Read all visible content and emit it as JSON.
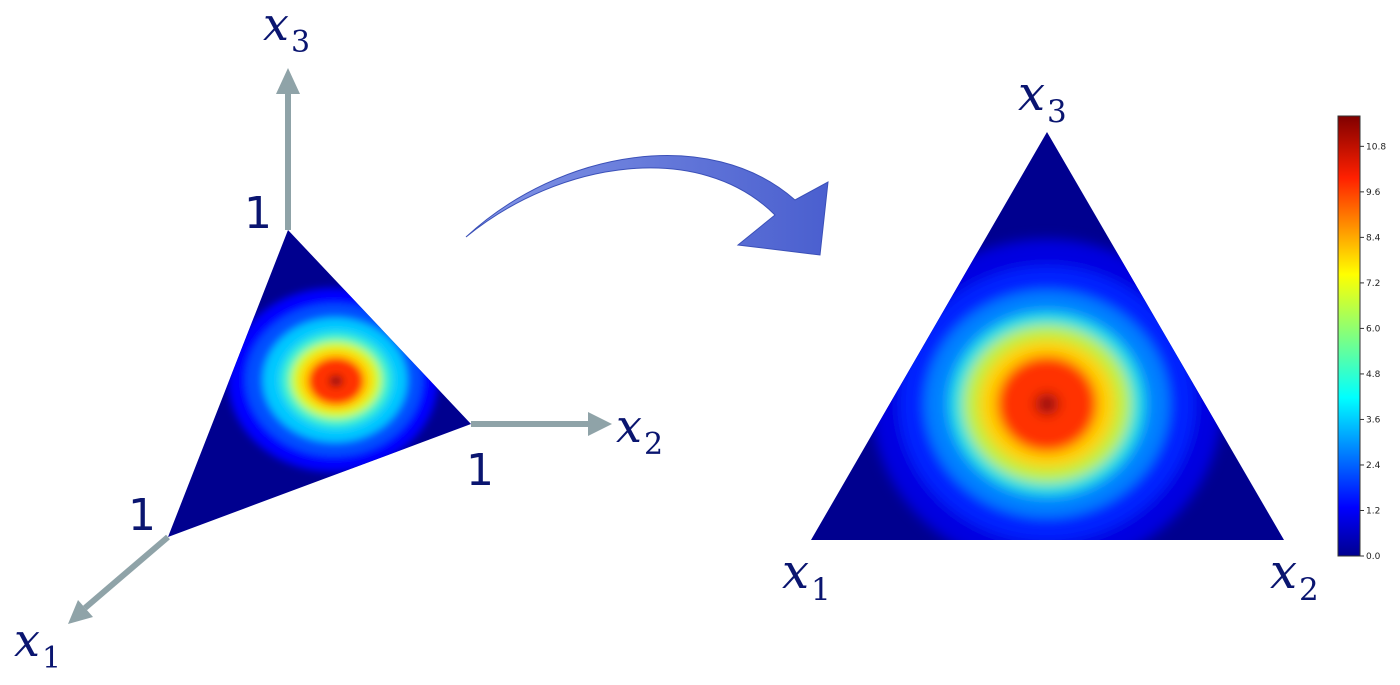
{
  "left_3d": {
    "axis_x1": {
      "base": "x",
      "sub": "1"
    },
    "axis_x2": {
      "base": "x",
      "sub": "2"
    },
    "axis_x3": {
      "base": "x",
      "sub": "3"
    },
    "unit_x1": "1",
    "unit_x2": "1",
    "unit_x3": "1"
  },
  "right_ternary": {
    "corner_x1": {
      "base": "x",
      "sub": "1"
    },
    "corner_x2": {
      "base": "x",
      "sub": "2"
    },
    "corner_x3": {
      "base": "x",
      "sub": "3"
    }
  },
  "colorbar": {
    "ticks": [
      "0.0",
      "1.2",
      "2.4",
      "3.6",
      "4.8",
      "6.0",
      "7.2",
      "8.4",
      "9.6",
      "10.8"
    ],
    "tick_values": [
      0.0,
      1.2,
      2.4,
      3.6,
      4.8,
      6.0,
      7.2,
      8.4,
      9.6,
      10.8
    ],
    "range": [
      0.0,
      11.6
    ],
    "colormap": "jet"
  },
  "colors": {
    "axis_arrow": "#8fa3a8",
    "label_text": "#0a1570",
    "transform_arrow": "#5a70d8"
  }
}
